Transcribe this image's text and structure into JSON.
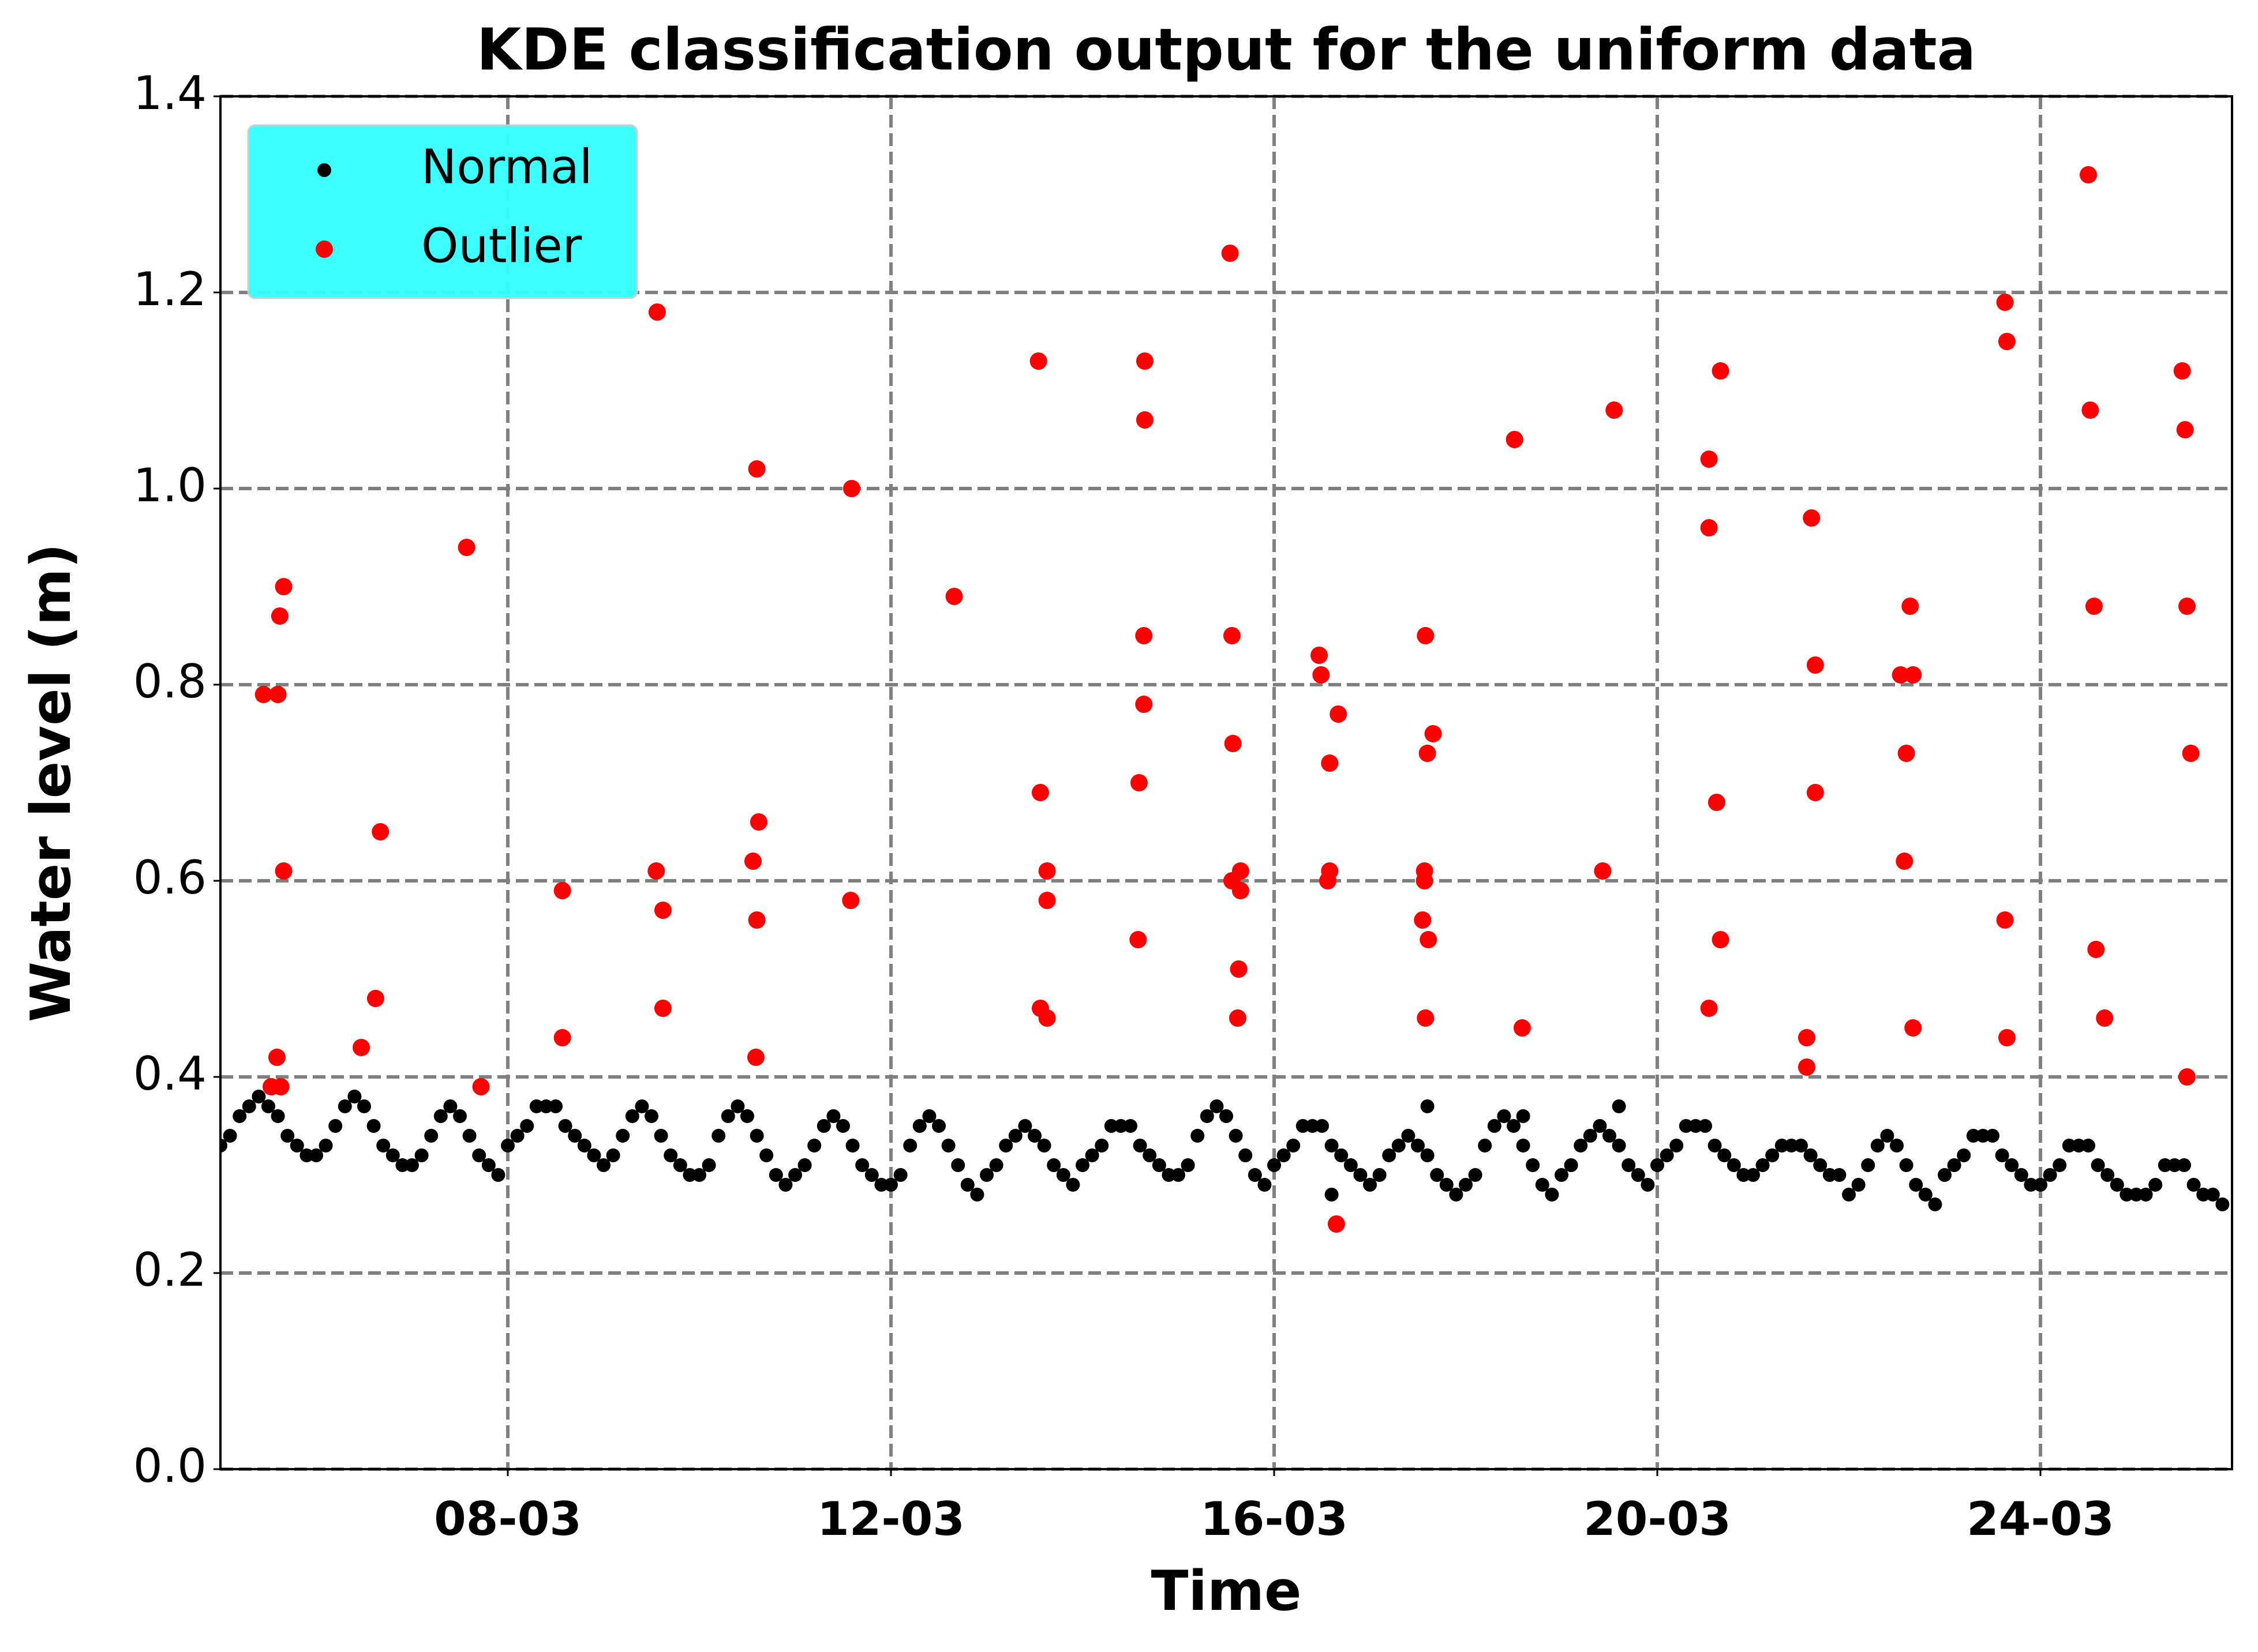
{
  "chart_data": {
    "type": "scatter",
    "title": "KDE classification output for the uniform data",
    "x_label": "Time",
    "y_label": "Water level (m)",
    "xlim": [
      5,
      26
    ],
    "ylim": [
      0,
      1.4
    ],
    "xticks": [
      {
        "value": 8,
        "label": "08-03"
      },
      {
        "value": 12,
        "label": "12-03"
      },
      {
        "value": 16,
        "label": "16-03"
      },
      {
        "value": 20,
        "label": "20-03"
      },
      {
        "value": 24,
        "label": "24-03"
      }
    ],
    "yticks": [
      {
        "value": 0,
        "label": "0.0"
      },
      0.2,
      0.4,
      0.6,
      0.8,
      {
        "value": 1,
        "label": "1.0"
      },
      1.2,
      1.4
    ],
    "grid": true,
    "legend": "upper left",
    "legend_color": "#33ffff",
    "series": [
      {
        "name": "Normal",
        "color": "#000000",
        "x": [
          5,
          5.1,
          5.2,
          5.3,
          5.4,
          5.5,
          5.6,
          5.7,
          5.8,
          5.9,
          6,
          6.1,
          6.2,
          6.3,
          6.4,
          6.5,
          6.6,
          6.7,
          6.8,
          6.9,
          7,
          7.1,
          7.2,
          7.3,
          7.4,
          7.5,
          7.6,
          7.7,
          7.8,
          7.9,
          8,
          8.1,
          8.2,
          8.3,
          8.4,
          8.5,
          8.6,
          8.7,
          8.8,
          8.9,
          9,
          9.1,
          9.2,
          9.3,
          9.4,
          9.5,
          9.6,
          9.7,
          9.8,
          9.9,
          10,
          10.1,
          10.2,
          10.3,
          10.4,
          10.5,
          10.6,
          10.7,
          10.8,
          10.9,
          11,
          11.1,
          11.2,
          11.3,
          11.4,
          11.5,
          11.6,
          11.7,
          11.8,
          11.9,
          12,
          12.1,
          12.2,
          12.3,
          12.4,
          12.5,
          12.6,
          12.7,
          12.8,
          12.9,
          13,
          13.1,
          13.2,
          13.3,
          13.4,
          13.5,
          13.6,
          13.7,
          13.8,
          13.9,
          14,
          14.1,
          14.2,
          14.3,
          14.4,
          14.5,
          14.6,
          14.7,
          14.8,
          14.9,
          15,
          15.1,
          15.2,
          15.3,
          15.4,
          15.5,
          15.6,
          15.7,
          15.8,
          15.9,
          16,
          16.1,
          16.2,
          16.3,
          16.4,
          16.5,
          16.6,
          16.7,
          16.8,
          16.9,
          17,
          17.1,
          17.2,
          17.3,
          17.4,
          17.5,
          17.6,
          17.7,
          17.8,
          17.9,
          18,
          18.1,
          18.2,
          18.3,
          18.4,
          18.5,
          18.6,
          18.7,
          18.8,
          18.9,
          19,
          19.1,
          19.2,
          19.3,
          19.4,
          19.5,
          19.6,
          19.7,
          19.8,
          19.9,
          20,
          20.1,
          20.2,
          20.3,
          20.4,
          20.5,
          20.6,
          20.7,
          20.8,
          20.9,
          21,
          21.1,
          21.2,
          21.3,
          21.4,
          21.5,
          21.6,
          21.7,
          21.8,
          21.9,
          22,
          22.1,
          22.2,
          22.3,
          22.4,
          22.5,
          22.6,
          22.7,
          22.8,
          22.9,
          23,
          23.1,
          23.2,
          23.3,
          23.4,
          23.5,
          23.6,
          23.7,
          23.8,
          23.9,
          24,
          24.1,
          24.2,
          24.3,
          24.4,
          24.5,
          24.6,
          24.7,
          24.8,
          24.9,
          25,
          25.1,
          25.2,
          25.3,
          25.4,
          25.5,
          25.6,
          25.7,
          25.8,
          25.9,
          16.6,
          17.6,
          19.6,
          18.6
        ],
        "values": [
          0.33,
          0.34,
          0.36,
          0.37,
          0.38,
          0.37,
          0.36,
          0.34,
          0.33,
          0.32,
          0.32,
          0.33,
          0.35,
          0.37,
          0.38,
          0.37,
          0.35,
          0.33,
          0.32,
          0.31,
          0.31,
          0.32,
          0.34,
          0.36,
          0.37,
          0.36,
          0.34,
          0.32,
          0.31,
          0.3,
          0.33,
          0.34,
          0.35,
          0.37,
          0.37,
          0.37,
          0.35,
          0.34,
          0.33,
          0.32,
          0.31,
          0.32,
          0.34,
          0.36,
          0.37,
          0.36,
          0.34,
          0.32,
          0.31,
          0.3,
          0.3,
          0.31,
          0.34,
          0.36,
          0.37,
          0.36,
          0.34,
          0.32,
          0.3,
          0.29,
          0.3,
          0.31,
          0.33,
          0.35,
          0.36,
          0.35,
          0.33,
          0.31,
          0.3,
          0.29,
          0.29,
          0.3,
          0.33,
          0.35,
          0.36,
          0.35,
          0.33,
          0.31,
          0.29,
          0.28,
          0.3,
          0.31,
          0.33,
          0.34,
          0.35,
          0.34,
          0.33,
          0.31,
          0.3,
          0.29,
          0.31,
          0.32,
          0.33,
          0.35,
          0.35,
          0.35,
          0.33,
          0.32,
          0.31,
          0.3,
          0.3,
          0.31,
          0.34,
          0.36,
          0.37,
          0.36,
          0.34,
          0.32,
          0.3,
          0.29,
          0.31,
          0.32,
          0.33,
          0.35,
          0.35,
          0.35,
          0.33,
          0.32,
          0.31,
          0.3,
          0.29,
          0.3,
          0.32,
          0.33,
          0.34,
          0.33,
          0.32,
          0.3,
          0.29,
          0.28,
          0.29,
          0.3,
          0.33,
          0.35,
          0.36,
          0.35,
          0.33,
          0.31,
          0.29,
          0.28,
          0.3,
          0.31,
          0.33,
          0.34,
          0.35,
          0.34,
          0.33,
          0.31,
          0.3,
          0.29,
          0.31,
          0.32,
          0.33,
          0.35,
          0.35,
          0.35,
          0.33,
          0.32,
          0.31,
          0.3,
          0.3,
          0.31,
          0.32,
          0.33,
          0.33,
          0.33,
          0.32,
          0.31,
          0.3,
          0.3,
          0.28,
          0.29,
          0.31,
          0.33,
          0.34,
          0.33,
          0.31,
          0.29,
          0.28,
          0.27,
          0.3,
          0.31,
          0.32,
          0.34,
          0.34,
          0.34,
          0.32,
          0.31,
          0.3,
          0.29,
          0.29,
          0.3,
          0.31,
          0.33,
          0.33,
          0.33,
          0.31,
          0.3,
          0.29,
          0.28,
          0.28,
          0.28,
          0.29,
          0.31,
          0.31,
          0.31,
          0.29,
          0.28,
          0.28,
          0.27,
          0.28,
          0.37,
          0.37,
          0.36
        ]
      },
      {
        "name": "Outlier",
        "color": "#ff0000",
        "x": [
          5.45,
          5.6,
          5.66,
          5.62,
          5.66,
          5.59,
          5.53,
          5.63,
          6.67,
          6.62,
          6.47,
          7.57,
          7.72,
          8.57,
          8.57,
          9.56,
          9.55,
          9.62,
          9.62,
          10.6,
          10.62,
          10.56,
          10.6,
          10.59,
          11.59,
          11.58,
          12.66,
          13.54,
          13.56,
          13.63,
          13.63,
          13.56,
          13.63,
          14.65,
          14.65,
          14.64,
          14.64,
          14.59,
          14.58,
          15.54,
          15.56,
          15.57,
          15.65,
          15.56,
          15.65,
          15.63,
          15.62,
          16.47,
          16.49,
          16.67,
          16.58,
          16.58,
          16.56,
          16.65,
          17.58,
          17.66,
          17.6,
          17.57,
          17.57,
          17.55,
          17.61,
          17.58,
          18.51,
          18.59,
          19.55,
          19.43,
          20.66,
          20.54,
          20.54,
          20.62,
          20.66,
          20.54,
          21.61,
          21.65,
          21.65,
          21.56,
          21.56,
          22.64,
          22.54,
          22.67,
          22.6,
          22.58,
          22.67,
          23.63,
          23.65,
          23.63,
          23.65,
          24.5,
          24.52,
          24.56,
          24.58,
          24.67,
          25.48,
          25.51,
          25.53,
          25.57,
          25.53
        ],
        "values": [
          0.79,
          0.79,
          0.9,
          0.87,
          0.61,
          0.42,
          0.39,
          0.39,
          0.65,
          0.48,
          0.43,
          0.94,
          0.39,
          0.59,
          0.44,
          1.18,
          0.61,
          0.57,
          0.47,
          1.02,
          0.66,
          0.62,
          0.56,
          0.42,
          1.0,
          0.58,
          0.89,
          1.13,
          0.69,
          0.61,
          0.58,
          0.47,
          0.46,
          1.13,
          1.07,
          0.85,
          0.78,
          0.7,
          0.54,
          1.24,
          0.85,
          0.74,
          0.61,
          0.6,
          0.59,
          0.51,
          0.46,
          0.83,
          0.81,
          0.77,
          0.72,
          0.61,
          0.6,
          0.25,
          0.85,
          0.75,
          0.73,
          0.61,
          0.6,
          0.56,
          0.54,
          0.46,
          1.05,
          0.45,
          1.08,
          0.61,
          1.12,
          1.03,
          0.96,
          0.68,
          0.54,
          0.47,
          0.97,
          0.82,
          0.69,
          0.44,
          0.41,
          0.88,
          0.81,
          0.81,
          0.73,
          0.62,
          0.45,
          1.19,
          1.15,
          0.56,
          0.44,
          1.32,
          1.08,
          0.88,
          0.53,
          0.46,
          1.12,
          1.06,
          0.88,
          0.73,
          0.4
        ]
      }
    ]
  }
}
